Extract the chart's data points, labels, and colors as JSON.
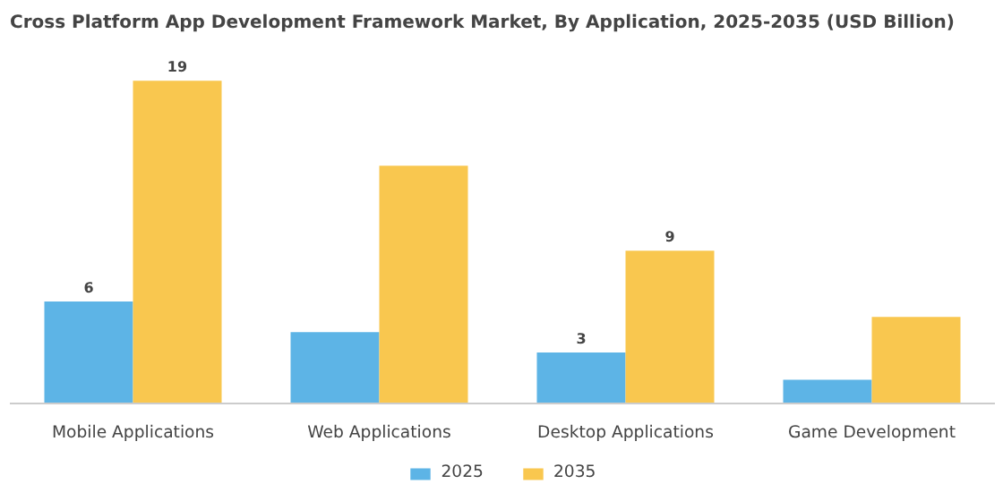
{
  "chart_data": {
    "type": "bar",
    "title": "Cross Platform App Development Framework Market, By Application, 2025-2035 (USD Billion)",
    "categories": [
      "Mobile Applications",
      "Web Applications",
      "Desktop Applications",
      "Game Development"
    ],
    "series": [
      {
        "name": "2025",
        "color": "#5db4e6",
        "values": [
          6,
          4.2,
          3,
          1.4
        ],
        "value_labels": [
          "6",
          null,
          "3",
          null
        ]
      },
      {
        "name": "2035",
        "color": "#f9c74f",
        "values": [
          19,
          14,
          9,
          5.1
        ],
        "value_labels": [
          "19",
          null,
          "9",
          null
        ]
      }
    ],
    "legend": "bottom",
    "tick_labels": "x"
  }
}
